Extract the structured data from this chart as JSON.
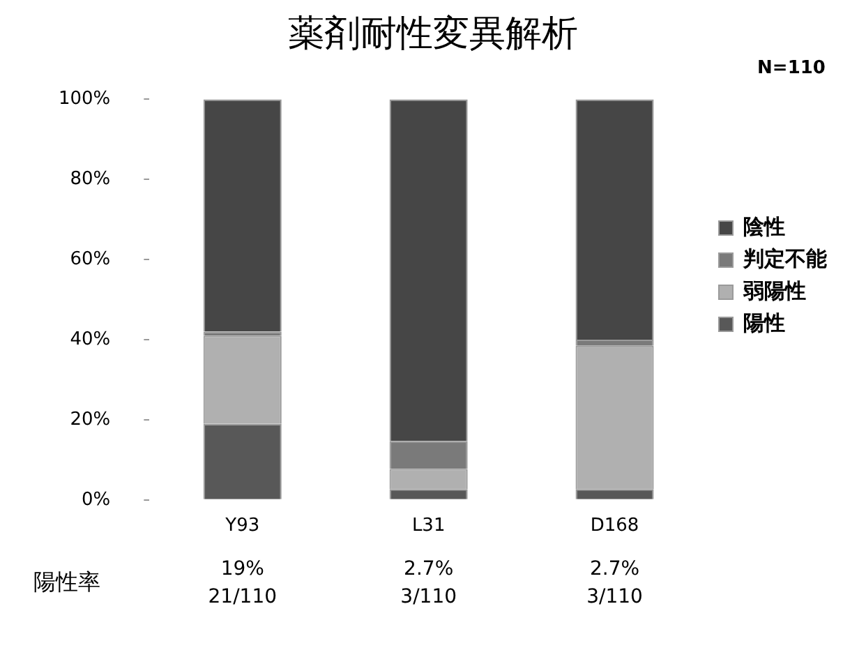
{
  "chart_data": {
    "type": "bar",
    "title": "薬剤耐性変異解析",
    "stacked": true,
    "legend": "right",
    "categories": [
      "Y93",
      "L31",
      "D168"
    ],
    "series": [
      {
        "name": "陽性",
        "color": "#585858",
        "values": [
          19,
          2.7,
          2.7
        ]
      },
      {
        "name": "弱陽性",
        "color": "#b0b0b0",
        "values": [
          22,
          5,
          35.8
        ]
      },
      {
        "name": "判定不能",
        "color": "#7a7a7a",
        "values": [
          1,
          7,
          1.5
        ]
      },
      {
        "name": "陰性",
        "color": "#464646",
        "values": [
          58,
          85.3,
          60
        ]
      }
    ],
    "ylim": [
      0,
      100
    ],
    "yticks": [
      {
        "value": 0,
        "label": "0%"
      },
      {
        "value": 20,
        "label": "20%"
      },
      {
        "value": 40,
        "label": "40%"
      },
      {
        "value": 60,
        "label": "60%"
      },
      {
        "value": 80,
        "label": "80%"
      },
      {
        "value": 100,
        "label": "100%"
      }
    ],
    "annotations": [
      "N=110",
      "陽性率",
      "19%",
      "21/110",
      "2.7%",
      "3/110",
      "2.7%",
      "3/110"
    ]
  }
}
